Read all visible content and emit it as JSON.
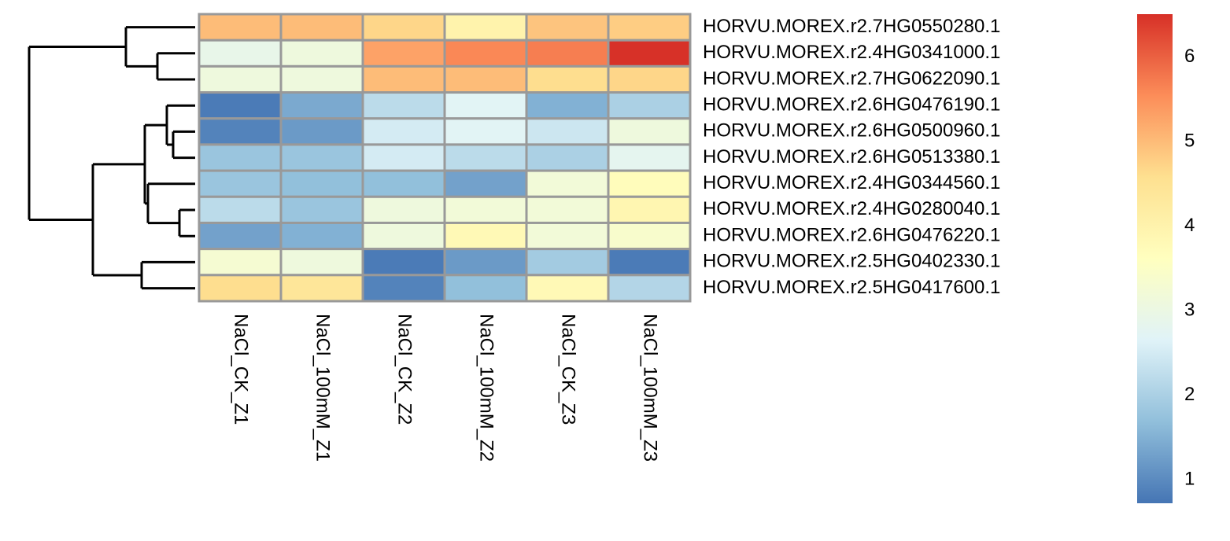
{
  "chart_data": {
    "type": "heatmap",
    "rows": [
      "HORVU.MOREX.r2.7HG0550280.1",
      "HORVU.MOREX.r2.4HG0341000.1",
      "HORVU.MOREX.r2.7HG0622090.1",
      "HORVU.MOREX.r2.6HG0476190.1",
      "HORVU.MOREX.r2.6HG0500960.1",
      "HORVU.MOREX.r2.6HG0513380.1",
      "HORVU.MOREX.r2.4HG0344560.1",
      "HORVU.MOREX.r2.4HG0280040.1",
      "HORVU.MOREX.r2.6HG0476220.1",
      "HORVU.MOREX.r2.5HG0402330.1",
      "HORVU.MOREX.r2.5HG0417600.1"
    ],
    "columns": [
      "NaCl_CK_Z1",
      "NaCl_100mM_Z1",
      "NaCl_CK_Z2",
      "NaCl_100mM_Z2",
      "NaCl_CK_Z3",
      "NaCl_100mM_Z3"
    ],
    "values": [
      [
        5.0,
        5.0,
        4.7,
        4.0,
        4.9,
        4.8
      ],
      [
        2.9,
        3.1,
        5.3,
        5.6,
        5.7,
        6.5
      ],
      [
        3.1,
        3.1,
        5.0,
        5.0,
        4.6,
        4.7
      ],
      [
        0.8,
        1.4,
        2.2,
        2.7,
        1.5,
        2.0
      ],
      [
        0.9,
        1.2,
        2.5,
        2.7,
        2.4,
        3.1
      ],
      [
        1.8,
        1.8,
        2.5,
        2.2,
        2.0,
        2.8
      ],
      [
        1.8,
        1.7,
        1.7,
        1.3,
        3.2,
        3.7
      ],
      [
        2.2,
        1.8,
        3.1,
        3.2,
        3.2,
        3.9
      ],
      [
        1.3,
        1.5,
        3.1,
        3.8,
        3.2,
        3.4
      ],
      [
        3.3,
        3.1,
        0.8,
        1.2,
        1.9,
        0.8
      ],
      [
        4.6,
        4.4,
        0.9,
        1.7,
        3.8,
        2.1
      ]
    ],
    "colors": [
      "#4575B4",
      "#91BFDB",
      "#E0F3F8",
      "#FFFFBF",
      "#FEE090",
      "#FC8D59",
      "#D73027"
    ],
    "zlim": [
      0.72,
      6.51
    ],
    "zticks": [
      1,
      2,
      3,
      4,
      5,
      6
    ]
  }
}
